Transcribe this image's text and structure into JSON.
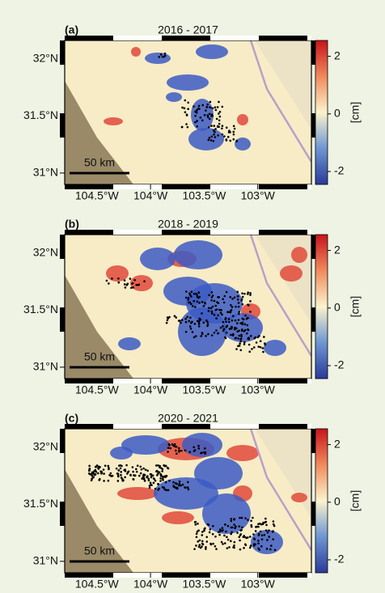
{
  "figure": {
    "panels": [
      {
        "label": "(a)",
        "title": "2016 - 2017"
      },
      {
        "label": "(b)",
        "title": "2018 - 2019"
      },
      {
        "label": "(c)",
        "title": "2020 - 2021"
      }
    ],
    "xlim": [
      -104.8,
      -102.5
    ],
    "xticks": [
      {
        "value": -104.5,
        "label": "104.5°W"
      },
      {
        "value": -104,
        "label": "104°W"
      },
      {
        "value": -103.5,
        "label": "103.5°W"
      },
      {
        "value": -103,
        "label": "103°W"
      }
    ],
    "ylim": [
      30.9,
      32.16
    ],
    "yticks": [
      {
        "value": 32,
        "label": "32°N"
      },
      {
        "value": 31.5,
        "label": "31.5°N"
      },
      {
        "value": 31,
        "label": "31°N"
      }
    ],
    "colorbar": {
      "label": "[cm]",
      "lim": [
        -2.45,
        2.55
      ],
      "ticks": [
        2,
        0,
        -2
      ]
    },
    "scale_bar": "50 km"
  }
}
